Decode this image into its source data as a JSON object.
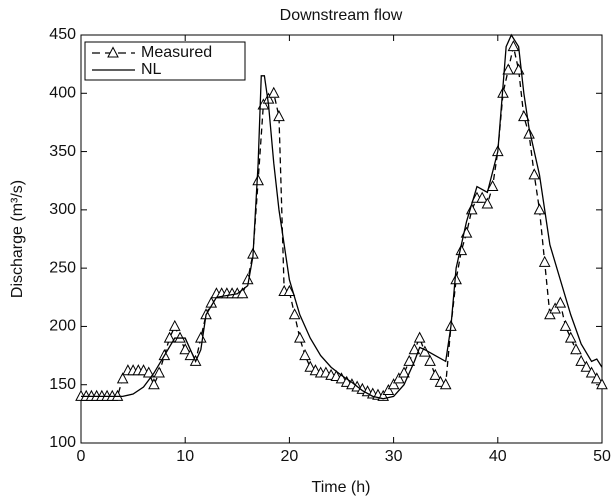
{
  "chart_data": {
    "type": "line",
    "title": "Downstream flow",
    "x_label": "Time (h)",
    "y_label": "Discharge (m³/s)",
    "xlim": [
      0,
      50
    ],
    "xticks": [
      0,
      10,
      20,
      30,
      40,
      50
    ],
    "ylim": [
      100,
      450
    ],
    "yticks": [
      100,
      150,
      200,
      250,
      300,
      350,
      400,
      450
    ],
    "grid": false,
    "legend": "upper-left",
    "series": [
      {
        "name": "Measured",
        "color": "#000000",
        "style": "dashed",
        "marker": "triangle",
        "x": [
          0,
          0.5,
          1,
          1.5,
          2,
          2.5,
          3,
          3.5,
          4,
          4.5,
          5,
          5.5,
          6,
          6.5,
          7,
          7.5,
          8,
          8.5,
          9,
          9.5,
          10,
          10.5,
          11,
          11.5,
          12,
          12.5,
          13,
          13.5,
          14,
          14.5,
          15,
          15.5,
          16,
          16.5,
          17,
          17.5,
          18,
          18.5,
          19,
          19.5,
          20,
          20.5,
          21,
          21.5,
          22,
          22.5,
          23,
          23.5,
          24,
          24.5,
          25,
          25.5,
          26,
          26.5,
          27,
          27.5,
          28,
          28.5,
          29,
          29.5,
          30,
          30.5,
          31,
          31.5,
          32,
          32.5,
          33,
          33.5,
          34,
          34.5,
          35,
          35.5,
          36,
          36.5,
          37,
          37.5,
          38,
          38.5,
          39,
          39.5,
          40,
          40.5,
          41,
          41.5,
          42,
          42.5,
          43,
          43.5,
          44,
          44.5,
          45,
          45.5,
          46,
          46.5,
          47,
          47.5,
          48,
          48.5,
          49,
          49.5,
          50
        ],
        "values": [
          140,
          140,
          140,
          140,
          140,
          140,
          140,
          140,
          155,
          162,
          162,
          162,
          162,
          160,
          150,
          160,
          175,
          190,
          200,
          190,
          180,
          175,
          170,
          190,
          210,
          220,
          228,
          228,
          228,
          228,
          228,
          228,
          240,
          262,
          325,
          390,
          395,
          400,
          380,
          230,
          230,
          210,
          190,
          175,
          165,
          162,
          160,
          160,
          158,
          157,
          155,
          152,
          150,
          148,
          146,
          144,
          142,
          141,
          140,
          145,
          150,
          155,
          160,
          170,
          180,
          190,
          178,
          170,
          158,
          152,
          150,
          200,
          240,
          265,
          280,
          300,
          310,
          310,
          305,
          320,
          350,
          400,
          420,
          440,
          420,
          380,
          365,
          330,
          300,
          255,
          210,
          215,
          220,
          200,
          190,
          180,
          170,
          165,
          160,
          155,
          150
        ]
      },
      {
        "name": "NL",
        "color": "#000000",
        "style": "solid",
        "marker": "none",
        "x": [
          0,
          4,
          5,
          6,
          7,
          8,
          9,
          10,
          11,
          11.5,
          12,
          13,
          15,
          16,
          16.5,
          17,
          17.3,
          17.6,
          18,
          18.5,
          19,
          19.5,
          20,
          21,
          22,
          23,
          24,
          25,
          26,
          27,
          28,
          29,
          30,
          31,
          32,
          32.5,
          33,
          34,
          35,
          35.5,
          36,
          37,
          38,
          39,
          40,
          40.8,
          41.3,
          42,
          42.5,
          43,
          44,
          44.5,
          45,
          46,
          47,
          48,
          49,
          49.5,
          50
        ],
        "values": [
          140,
          140,
          142,
          148,
          160,
          175,
          190,
          190,
          170,
          180,
          210,
          225,
          228,
          235,
          260,
          340,
          415,
          415,
          390,
          340,
          300,
          270,
          240,
          210,
          190,
          175,
          165,
          158,
          152,
          145,
          140,
          138,
          140,
          150,
          170,
          182,
          180,
          175,
          170,
          200,
          250,
          290,
          320,
          315,
          350,
          440,
          450,
          440,
          400,
          370,
          330,
          300,
          270,
          240,
          210,
          185,
          170,
          172,
          165
        ]
      }
    ]
  }
}
